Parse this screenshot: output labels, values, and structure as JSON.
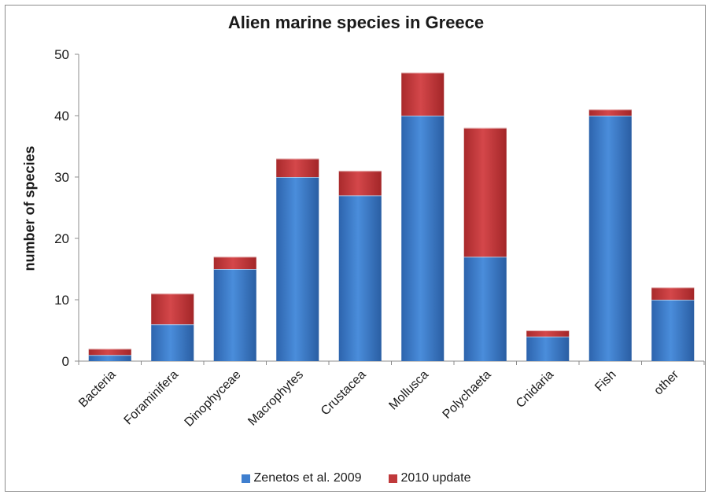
{
  "chart_data": {
    "type": "bar",
    "stacked": true,
    "title": "Alien marine species in Greece",
    "xlabel": "",
    "ylabel": "number of species",
    "ylim": [
      0,
      50
    ],
    "yticks": [
      "0",
      "10",
      "20",
      "30",
      "40",
      "50"
    ],
    "categories": [
      "Bacteria",
      "Foraminifera",
      "Dinophyceae",
      "Macrophytes",
      "Crustacea",
      "Mollusca",
      "Polychaeta",
      "Cnidaria",
      "Fish",
      "other"
    ],
    "series": [
      {
        "name": "Zenetos et al. 2009",
        "color": "#3f7fcf",
        "values": [
          1,
          6,
          15,
          30,
          27,
          40,
          17,
          4,
          40,
          10
        ]
      },
      {
        "name": "2010 update",
        "color": "#c0393b",
        "values": [
          1,
          5,
          2,
          3,
          4,
          7,
          21,
          1,
          1,
          2
        ]
      }
    ],
    "grid": false,
    "legend": "bottom"
  }
}
